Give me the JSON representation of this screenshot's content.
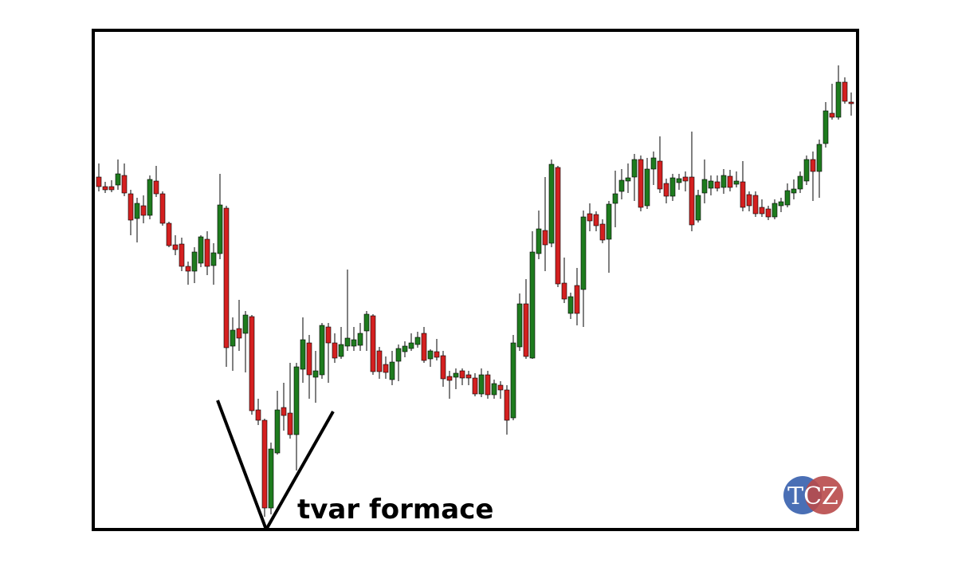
{
  "chart_data": {
    "type": "candlestick",
    "open": [
      442,
      430,
      430,
      432,
      444,
      421,
      390,
      406,
      394,
      437,
      421,
      384,
      357,
      358,
      330,
      324,
      334,
      364,
      331,
      346,
      403,
      230,
      252,
      246,
      267,
      150,
      137,
      27,
      96,
      153,
      146,
      119,
      201,
      234,
      191,
      194,
      254,
      234,
      217,
      230,
      230,
      231,
      249,
      268,
      224,
      207,
      188,
      211,
      223,
      227,
      232,
      246,
      214,
      223,
      218,
      192,
      191,
      199,
      194,
      190,
      170,
      194,
      169,
      181,
      175,
      140,
      229,
      283,
      215,
      346,
      375,
      359,
      454,
      309,
      271,
      306,
      301,
      396,
      395,
      383,
      364,
      409,
      424,
      437,
      442,
      464,
      406,
      452,
      462,
      434,
      418,
      435,
      442,
      442,
      388,
      422,
      428,
      436,
      429,
      443,
      433,
      436,
      420,
      419,
      404,
      402,
      392,
      406,
      407,
      422,
      427,
      437,
      464,
      449,
      484,
      522,
      517,
      561,
      536
    ],
    "high": [
      459,
      436,
      438,
      464,
      459,
      426,
      416,
      419,
      444,
      456,
      424,
      386,
      369,
      366,
      336,
      354,
      369,
      374,
      359,
      446,
      406,
      266,
      288,
      274,
      269,
      164,
      139,
      109,
      174,
      184,
      209,
      209,
      266,
      244,
      224,
      259,
      259,
      246,
      254,
      326,
      254,
      259,
      274,
      270,
      229,
      217,
      224,
      232,
      236,
      246,
      248,
      254,
      226,
      239,
      224,
      199,
      202,
      202,
      199,
      196,
      202,
      199,
      188,
      186,
      181,
      244,
      296,
      314,
      374,
      400,
      442,
      464,
      456,
      341,
      297,
      328,
      400,
      409,
      399,
      389,
      412,
      450,
      452,
      459,
      471,
      469,
      466,
      474,
      493,
      440,
      446,
      446,
      449,
      499,
      426,
      464,
      444,
      444,
      452,
      451,
      449,
      462,
      424,
      424,
      414,
      406,
      414,
      416,
      434,
      439,
      449,
      469,
      474,
      489,
      536,
      559,
      582,
      567,
      548
    ],
    "low": [
      424,
      422,
      423,
      426,
      418,
      369,
      360,
      384,
      389,
      417,
      381,
      354,
      344,
      324,
      307,
      309,
      329,
      319,
      307,
      339,
      204,
      199,
      224,
      197,
      144,
      131,
      16,
      19,
      94,
      124,
      114,
      74,
      184,
      164,
      159,
      189,
      184,
      209,
      214,
      224,
      224,
      224,
      224,
      194,
      189,
      189,
      181,
      186,
      216,
      224,
      228,
      209,
      204,
      212,
      179,
      164,
      176,
      181,
      181,
      167,
      166,
      164,
      164,
      164,
      119,
      137,
      224,
      214,
      214,
      339,
      324,
      354,
      304,
      284,
      264,
      256,
      254,
      374,
      374,
      359,
      322,
      379,
      414,
      422,
      412,
      399,
      402,
      432,
      422,
      409,
      412,
      426,
      424,
      374,
      385,
      409,
      419,
      424,
      421,
      424,
      429,
      399,
      399,
      392,
      392,
      388,
      389,
      398,
      404,
      414,
      422,
      432,
      412,
      416,
      479,
      514,
      514,
      534,
      519
    ],
    "close": [
      430,
      426,
      426,
      446,
      422,
      388,
      409,
      394,
      439,
      421,
      384,
      356,
      351,
      330,
      324,
      348,
      367,
      330,
      347,
      407,
      228,
      250,
      240,
      269,
      149,
      137,
      27,
      101,
      150,
      143,
      119,
      204,
      238,
      194,
      199,
      256,
      234,
      215,
      232,
      240,
      238,
      246,
      270,
      198,
      198,
      197,
      210,
      227,
      230,
      234,
      241,
      212,
      224,
      216,
      189,
      187,
      196,
      190,
      190,
      170,
      194,
      169,
      183,
      175,
      137,
      234,
      283,
      217,
      348,
      377,
      357,
      458,
      308,
      289,
      292,
      271,
      392,
      387,
      381,
      363,
      408,
      421,
      438,
      441,
      464,
      404,
      452,
      466,
      427,
      418,
      441,
      440,
      437,
      382,
      419,
      439,
      437,
      428,
      444,
      429,
      437,
      404,
      406,
      396,
      396,
      392,
      409,
      411,
      425,
      427,
      443,
      464,
      449,
      483,
      525,
      517,
      561,
      537,
      534
    ],
    "up_color": "#1e7b1e",
    "down_color": "#d42020",
    "ylim": [
      0,
      626
    ],
    "annotation": "tvar formace",
    "watermark": "TCZ"
  }
}
